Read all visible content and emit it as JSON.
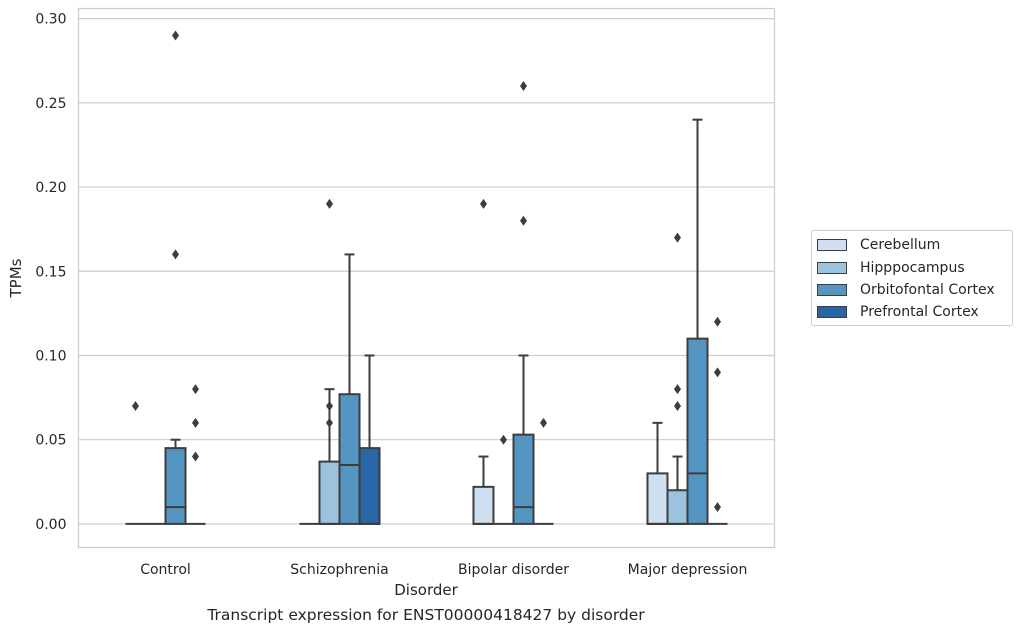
{
  "chart_data": {
    "type": "boxplot",
    "title": "",
    "caption": "Transcript expression for ENST00000418427 by disorder",
    "xlabel": "Disorder",
    "ylabel": "TPMs",
    "ylim": [
      -0.014,
      0.306
    ],
    "yticks": [
      "0.00",
      "0.05",
      "0.10",
      "0.15",
      "0.20",
      "0.25",
      "0.30"
    ],
    "ytick_values": [
      0,
      0.05,
      0.1,
      0.15,
      0.2,
      0.25,
      0.3
    ],
    "grid": "horizontal",
    "legend_position": "right",
    "categories": [
      "Control",
      "Schizophrenia",
      "Bipolar disorder",
      "Major depression"
    ],
    "series": [
      {
        "name": "Cerebellum",
        "color": "#cfe1f0",
        "boxes": [
          {
            "q1": 0,
            "median": 0,
            "q3": 0,
            "whisker_low": 0,
            "whisker_high": 0,
            "outliers": [
              0.07
            ]
          },
          {
            "q1": 0,
            "median": 0,
            "q3": 0,
            "whisker_low": 0,
            "whisker_high": 0,
            "outliers": []
          },
          {
            "q1": 0,
            "median": 0,
            "q3": 0.022,
            "whisker_low": 0,
            "whisker_high": 0.04,
            "outliers": [
              0.19
            ]
          },
          {
            "q1": 0,
            "median": 0,
            "q3": 0.03,
            "whisker_low": 0,
            "whisker_high": 0.06,
            "outliers": []
          }
        ]
      },
      {
        "name": "Hipppocampus",
        "color": "#9cc3dd",
        "boxes": [
          {
            "q1": 0,
            "median": 0,
            "q3": 0,
            "whisker_low": 0,
            "whisker_high": 0,
            "outliers": []
          },
          {
            "q1": 0,
            "median": 0,
            "q3": 0.037,
            "whisker_low": 0,
            "whisker_high": 0.08,
            "outliers": [
              0.06,
              0.07,
              0.19
            ]
          },
          {
            "q1": 0,
            "median": 0,
            "q3": 0,
            "whisker_low": 0,
            "whisker_high": 0,
            "outliers": [
              0.05
            ]
          },
          {
            "q1": 0,
            "median": 0,
            "q3": 0.02,
            "whisker_low": 0,
            "whisker_high": 0.04,
            "outliers": [
              0.07,
              0.08,
              0.17
            ]
          }
        ]
      },
      {
        "name": "Orbitofontal Cortex",
        "color": "#5595c2",
        "boxes": [
          {
            "q1": 0,
            "median": 0.01,
            "q3": 0.045,
            "whisker_low": 0,
            "whisker_high": 0.05,
            "outliers": [
              0.16,
              0.29
            ]
          },
          {
            "q1": 0,
            "median": 0.035,
            "q3": 0.077,
            "whisker_low": 0,
            "whisker_high": 0.16,
            "outliers": []
          },
          {
            "q1": 0,
            "median": 0.01,
            "q3": 0.053,
            "whisker_low": 0,
            "whisker_high": 0.1,
            "outliers": [
              0.18,
              0.26
            ]
          },
          {
            "q1": 0,
            "median": 0.03,
            "q3": 0.11,
            "whisker_low": 0,
            "whisker_high": 0.24,
            "outliers": []
          }
        ]
      },
      {
        "name": "Prefrontal Cortex",
        "color": "#2a65a6",
        "boxes": [
          {
            "q1": 0,
            "median": 0,
            "q3": 0,
            "whisker_low": 0,
            "whisker_high": 0,
            "outliers": [
              0.04,
              0.06,
              0.08
            ]
          },
          {
            "q1": 0,
            "median": 0,
            "q3": 0.045,
            "whisker_low": 0,
            "whisker_high": 0.1,
            "outliers": []
          },
          {
            "q1": 0,
            "median": 0,
            "q3": 0,
            "whisker_low": 0,
            "whisker_high": 0,
            "outliers": [
              0.06
            ]
          },
          {
            "q1": 0,
            "median": 0,
            "q3": 0,
            "whisker_low": 0,
            "whisker_high": 0,
            "outliers": [
              0.01,
              0.09,
              0.12
            ]
          }
        ]
      }
    ]
  }
}
